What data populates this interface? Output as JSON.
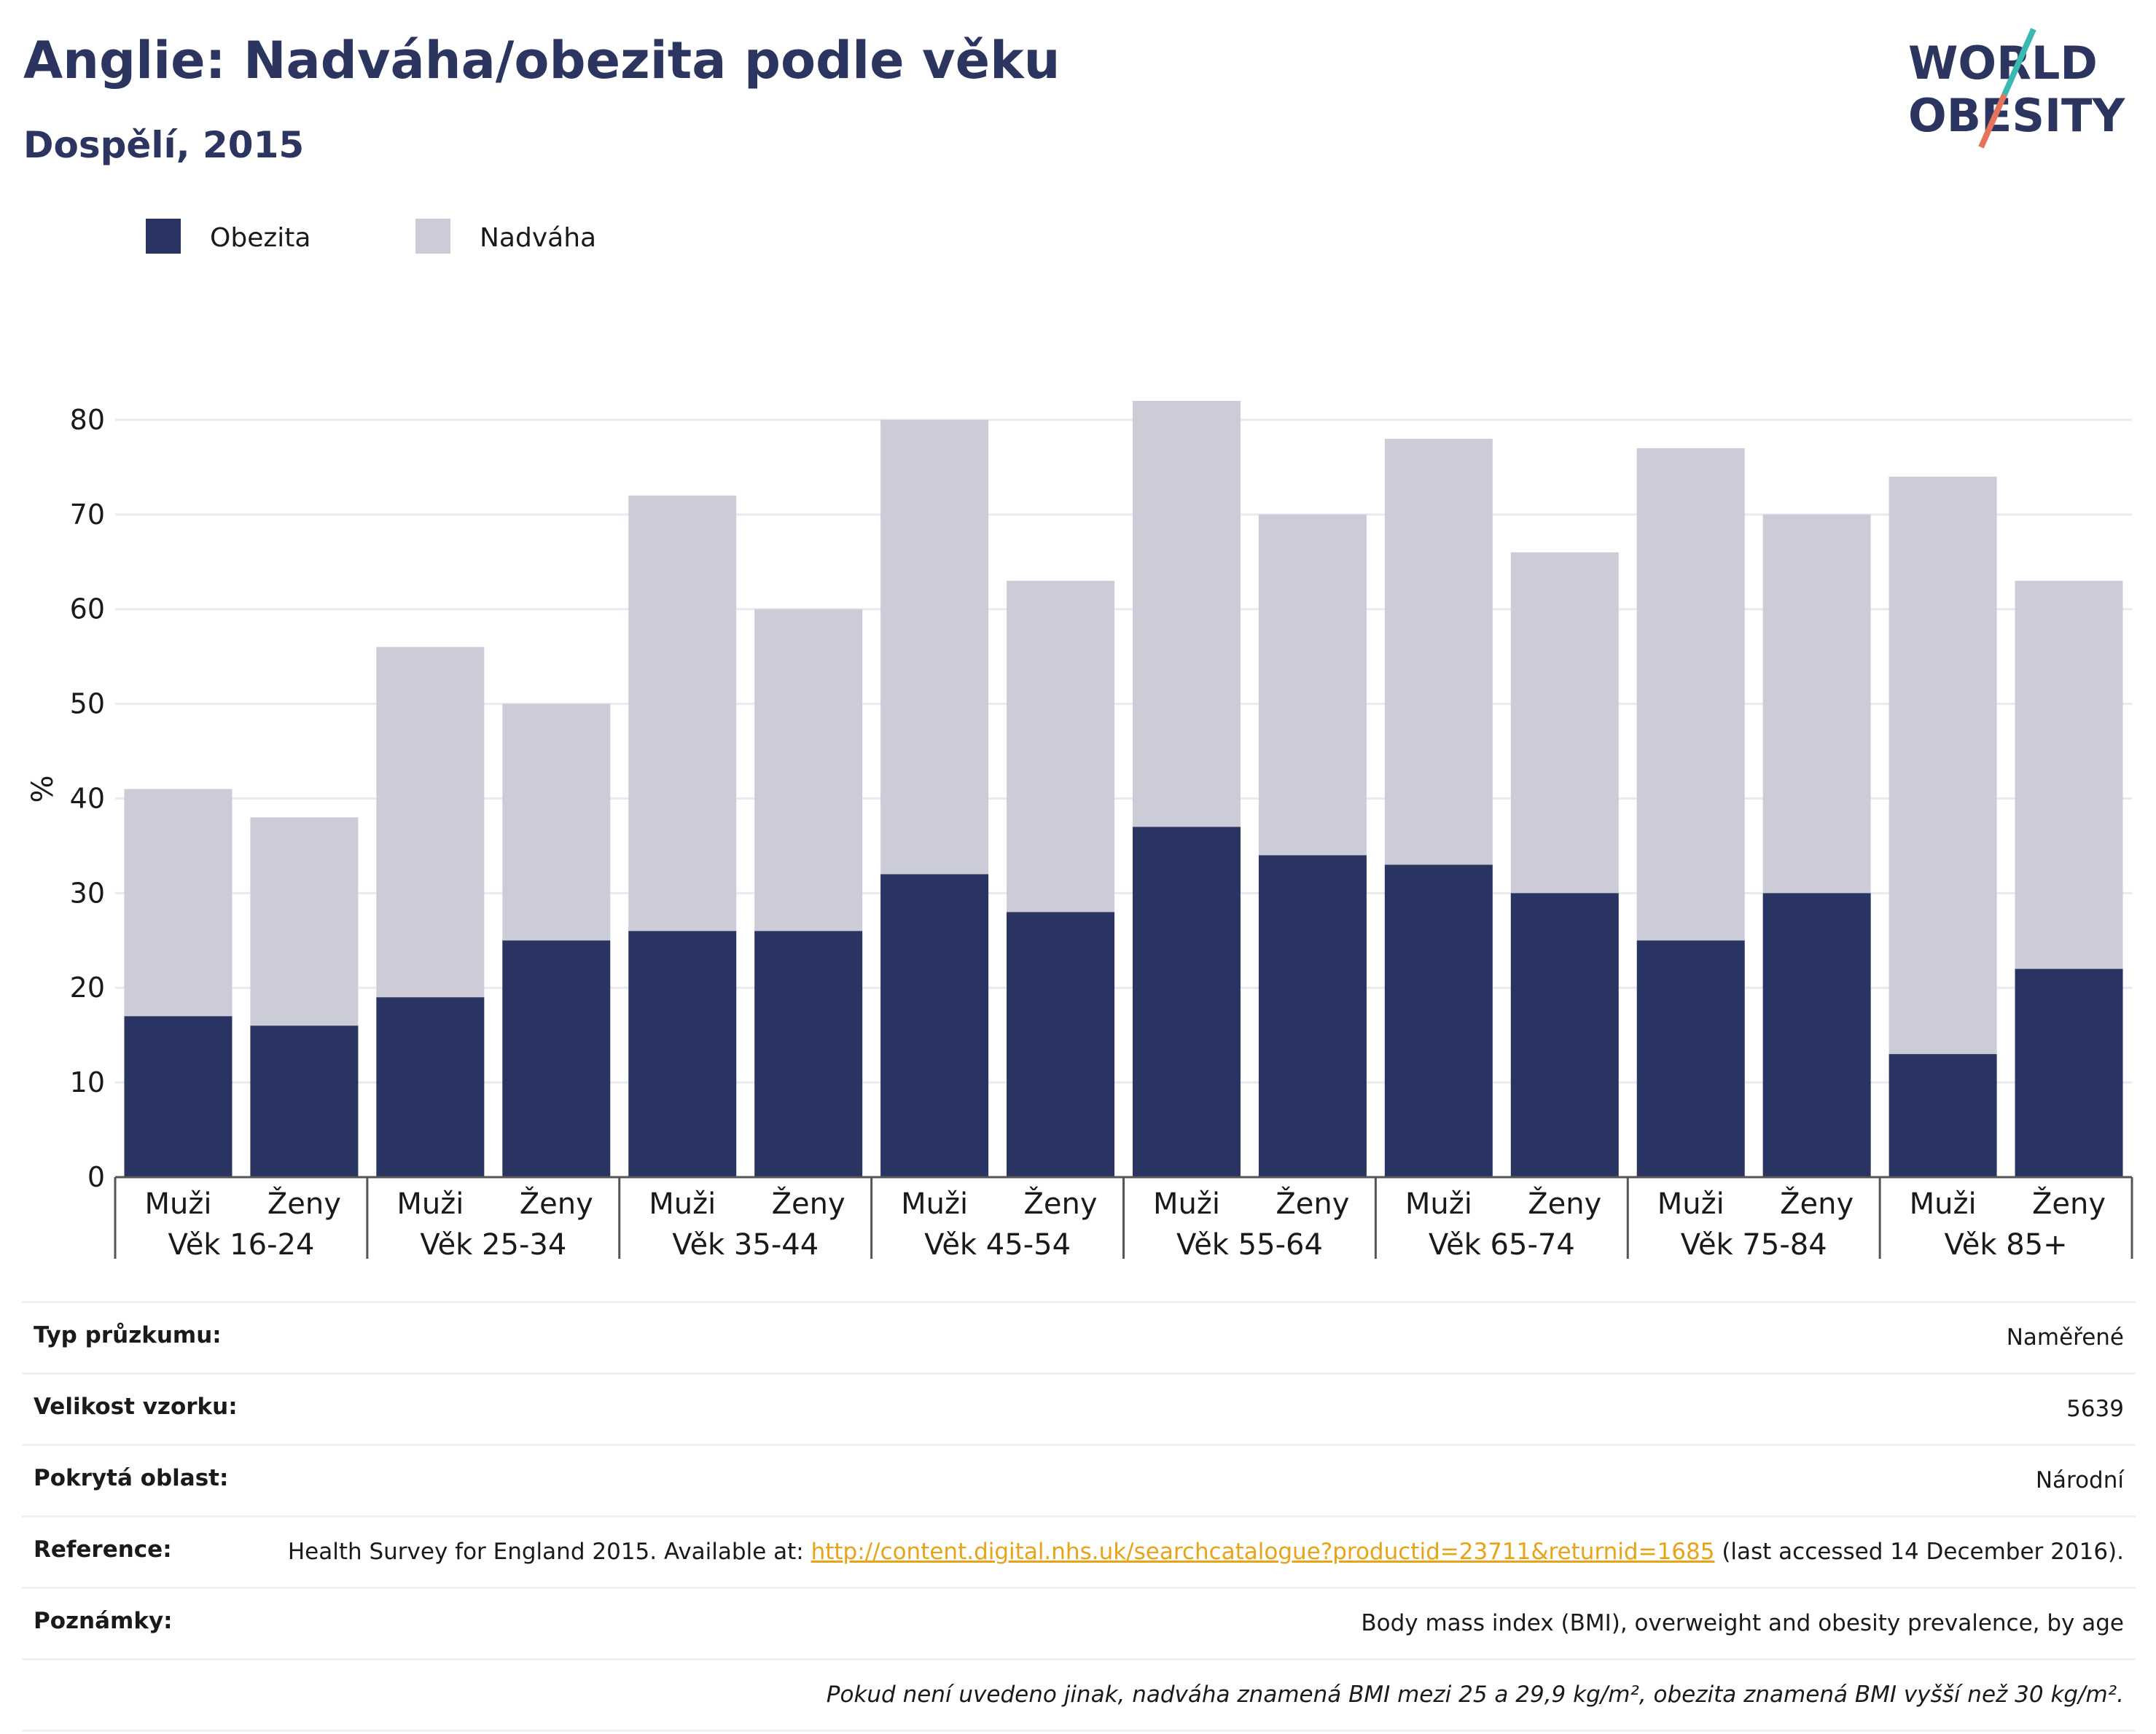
{
  "header": {
    "title": "Anglie: Nadváha/obezita podle věku",
    "subtitle": "Dospělí, 2015"
  },
  "logo": {
    "line1": "WORLD",
    "line2": "OBESITY",
    "text_color": "#2b355f",
    "slash_colors": [
      "#3cb8b2",
      "#e6735c"
    ]
  },
  "colors": {
    "obesity": "#293462",
    "overweight": "#cbccd8",
    "grid": "#e8eaef",
    "axis": "#555555"
  },
  "chart_data": {
    "type": "bar",
    "stacked": true,
    "ylabel": "%",
    "ylim": [
      0,
      82
    ],
    "yticks": [
      0,
      10,
      20,
      30,
      40,
      50,
      60,
      70,
      80
    ],
    "legend": {
      "position": "top-left"
    },
    "groups": [
      "Věk 16-24",
      "Věk 25-34",
      "Věk 35-44",
      "Věk 45-54",
      "Věk 55-64",
      "Věk 65-74",
      "Věk 75-84",
      "Věk 85+"
    ],
    "subcategories": [
      "Muži",
      "Ženy"
    ],
    "series": [
      {
        "name": "Obezita",
        "values": [
          17,
          16,
          19,
          25,
          26,
          26,
          32,
          28,
          37,
          34,
          33,
          30,
          25,
          30,
          13,
          22
        ]
      },
      {
        "name": "Nadváha",
        "values": [
          24,
          22,
          37,
          25,
          46,
          34,
          48,
          35,
          45,
          36,
          45,
          36,
          52,
          40,
          61,
          41
        ]
      }
    ]
  },
  "info": {
    "rows": [
      {
        "label": "Typ průzkumu:",
        "value": "Naměřené"
      },
      {
        "label": "Velikost vzorku:",
        "value": "5639"
      },
      {
        "label": "Pokrytá oblast:",
        "value": "Národní"
      }
    ],
    "reference": {
      "label": "Reference:",
      "prefix": "Health Survey for England 2015. Available at: ",
      "link": "http://content.digital.nhs.uk/searchcatalogue?productid=23711&returnid=1685",
      "suffix": " (last accessed 14 December 2016)."
    },
    "notes": {
      "label": "Poznámky:",
      "value": "Body mass index (BMI), overweight and obesity prevalence, by age"
    },
    "footnote": "Pokud není uvedeno jinak, nadváha znamená BMI mezi 25 a 29,9 kg/m², obezita znamená BMI vyšší než 30 kg/m²."
  }
}
